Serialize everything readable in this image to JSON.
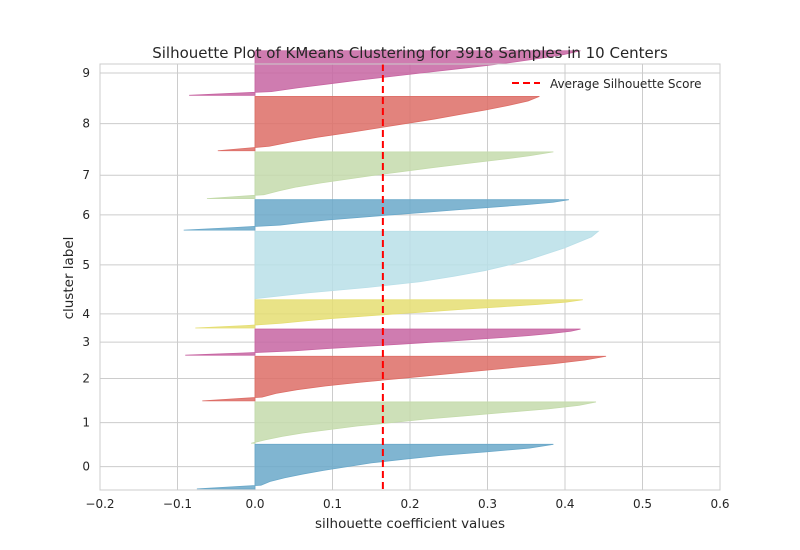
{
  "chart_data": {
    "type": "area",
    "title": "Silhouette Plot of KMeans Clustering for 3918 Samples in 10 Centers",
    "xlabel": "silhouette coefficient values",
    "ylabel": "cluster label",
    "xlim": [
      -0.2,
      0.6
    ],
    "x_ticks": [
      "−0.2",
      "−0.1",
      "0.0",
      "0.1",
      "0.2",
      "0.3",
      "0.4",
      "0.5",
      "0.6"
    ],
    "x_tick_values": [
      -0.2,
      -0.1,
      0.0,
      0.1,
      0.2,
      0.3,
      0.4,
      0.5,
      0.6
    ],
    "average_silhouette_score": 0.165,
    "legend": {
      "label": "Average Silhouette Score",
      "position": "top-right"
    },
    "grid": true,
    "ylim": [
      0,
      3918
    ],
    "clusters": [
      {
        "label": "0",
        "color": "#6aa8c9",
        "start": 10,
        "size": 410,
        "max": 0.385,
        "min": -0.075,
        "shape": [
          0.0,
          0.02,
          0.05,
          0.1,
          0.16,
          0.23,
          0.31,
          0.39,
          0.5,
          0.62,
          0.78,
          0.92,
          1.0
        ],
        "neg_frac": 0.08
      },
      {
        "label": "1",
        "color": "#c4dbab",
        "start": 430,
        "size": 380,
        "max": 0.44,
        "min": -0.005,
        "shape": [
          0.0,
          0.03,
          0.08,
          0.14,
          0.22,
          0.3,
          0.4,
          0.5,
          0.62,
          0.74,
          0.86,
          0.95,
          1.0
        ],
        "neg_frac": 0.03
      },
      {
        "label": "2",
        "color": "#dd6d66",
        "start": 820,
        "size": 410,
        "max": 0.453,
        "min": -0.068,
        "shape": [
          0.0,
          0.02,
          0.06,
          0.12,
          0.2,
          0.3,
          0.41,
          0.52,
          0.63,
          0.74,
          0.85,
          0.94,
          1.0
        ],
        "neg_frac": 0.08
      },
      {
        "label": "3",
        "color": "#c765a2",
        "start": 1240,
        "size": 240,
        "max": 0.42,
        "min": -0.09,
        "shape": [
          0.0,
          0.05,
          0.12,
          0.22,
          0.33,
          0.44,
          0.55,
          0.65,
          0.75,
          0.84,
          0.91,
          0.97,
          1.0
        ],
        "neg_frac": 0.1
      },
      {
        "label": "4",
        "color": "#e5de72",
        "start": 1490,
        "size": 260,
        "max": 0.423,
        "min": -0.077,
        "shape": [
          0.0,
          0.03,
          0.08,
          0.15,
          0.23,
          0.33,
          0.43,
          0.54,
          0.64,
          0.75,
          0.86,
          0.95,
          1.0
        ],
        "neg_frac": 0.1
      },
      {
        "label": "5",
        "color": "#b9dfe8",
        "start": 1760,
        "size": 620,
        "max": 0.443,
        "min": 0.0,
        "shape": [
          0.0,
          0.15,
          0.33,
          0.48,
          0.58,
          0.67,
          0.74,
          0.8,
          0.85,
          0.9,
          0.94,
          0.98,
          1.0
        ],
        "neg_frac": 0.0
      },
      {
        "label": "6",
        "color": "#6aa8c9",
        "start": 2390,
        "size": 280,
        "max": 0.405,
        "min": -0.092,
        "shape": [
          0.0,
          0.03,
          0.08,
          0.15,
          0.23,
          0.33,
          0.43,
          0.54,
          0.64,
          0.75,
          0.86,
          0.95,
          1.0
        ],
        "neg_frac": 0.12
      },
      {
        "label": "7",
        "color": "#c4dbab",
        "start": 2680,
        "size": 430,
        "max": 0.385,
        "min": -0.062,
        "shape": [
          0.0,
          0.03,
          0.08,
          0.14,
          0.22,
          0.31,
          0.4,
          0.5,
          0.6,
          0.71,
          0.82,
          0.92,
          1.0
        ],
        "neg_frac": 0.08
      },
      {
        "label": "8",
        "color": "#dd6d66",
        "start": 3120,
        "size": 500,
        "max": 0.367,
        "min": -0.048,
        "shape": [
          0.0,
          0.05,
          0.13,
          0.22,
          0.33,
          0.43,
          0.53,
          0.63,
          0.72,
          0.81,
          0.89,
          0.96,
          1.0
        ],
        "neg_frac": 0.05
      },
      {
        "label": "9",
        "color": "#c765a2",
        "start": 3630,
        "size": 410,
        "max": 0.42,
        "min": -0.085,
        "shape": [
          0.0,
          0.05,
          0.13,
          0.22,
          0.31,
          0.41,
          0.51,
          0.61,
          0.71,
          0.8,
          0.88,
          0.95,
          1.0
        ],
        "neg_frac": 0.06
      }
    ],
    "colors": {
      "average_line": "#ff0000",
      "grid": "#cccccc",
      "background": "#ffffff",
      "axes_edge": "#cccccc"
    }
  }
}
